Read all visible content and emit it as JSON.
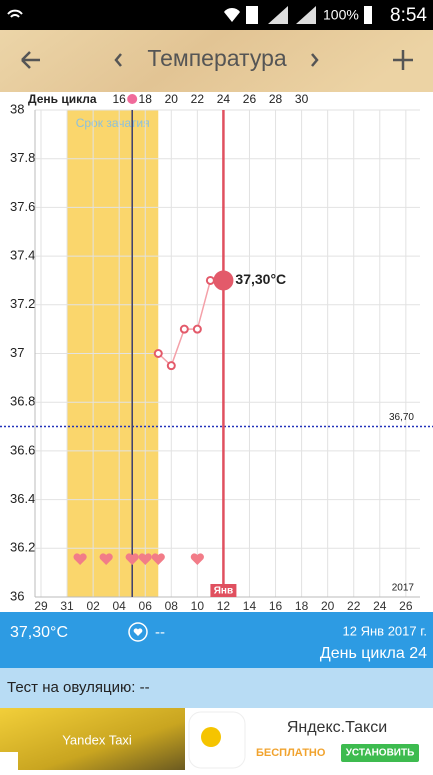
{
  "status_bar": {
    "battery": "100%",
    "time": "8:54"
  },
  "header": {
    "title": "Температура"
  },
  "chart_data": {
    "type": "line",
    "cycle_day_title": "День цикла",
    "cycle_days": [
      null,
      null,
      null,
      null,
      null,
      null,
      "16",
      null,
      "18",
      null,
      "20",
      null,
      "22",
      null,
      "24",
      null,
      "26",
      null,
      "28",
      null,
      "30",
      null,
      null,
      null,
      null,
      null,
      null,
      null,
      null,
      null
    ],
    "categories": [
      "29",
      null,
      "31",
      null,
      "02",
      null,
      "04",
      null,
      "06",
      null,
      "08",
      null,
      "10",
      null,
      "12",
      null,
      "14",
      null,
      "16",
      null,
      "18",
      null,
      "20",
      null,
      "22",
      null,
      "24",
      null,
      "26",
      null
    ],
    "values": [
      null,
      null,
      null,
      null,
      null,
      null,
      null,
      null,
      null,
      37.0,
      36.95,
      37.1,
      37.1,
      37.3,
      37.3,
      null,
      null,
      null,
      null,
      null,
      null,
      null,
      null,
      null,
      null,
      null,
      null,
      null,
      null,
      null
    ],
    "value_labels": [
      null,
      null,
      null,
      null,
      null,
      null,
      null,
      null,
      null,
      null,
      null,
      null,
      null,
      null,
      "37,30°C",
      null,
      null,
      null,
      null,
      null,
      null,
      null,
      null,
      null,
      null,
      null,
      null,
      null,
      null,
      null
    ],
    "color": "#e35a6a",
    "ylim": [
      36,
      38
    ],
    "yticks": [
      36,
      36.2,
      36.4,
      36.6,
      36.8,
      37,
      37.2,
      37.4,
      37.6,
      37.8,
      38
    ],
    "grid": true,
    "coverline": {
      "value": 36.7,
      "label": "36,70"
    },
    "fertile_window": {
      "label": "Срок зачатия",
      "range": [
        2,
        9
      ]
    },
    "ovulation_index": 7,
    "selected_index": 14,
    "month_label": "Янв",
    "year_label": "2017",
    "intercourse": [
      false,
      false,
      false,
      true,
      false,
      true,
      false,
      true,
      true,
      true,
      false,
      false,
      true,
      false,
      false,
      false,
      false,
      false,
      false,
      false,
      false,
      false,
      false,
      false,
      false,
      false,
      false,
      false,
      false,
      false
    ]
  },
  "info": {
    "temperature": "37,30°C",
    "heart": "--",
    "date": "12 Янв 2017 г.",
    "cycle_day": "День цикла 24"
  },
  "ovulation_test": {
    "label": "Тест на овуляцию: --"
  },
  "ad": {
    "image_text": "Yandex Taxi",
    "title": "Яндекс.Такси",
    "free": "БЕСПЛАТНО",
    "install": "УСТАНОВИТЬ"
  }
}
